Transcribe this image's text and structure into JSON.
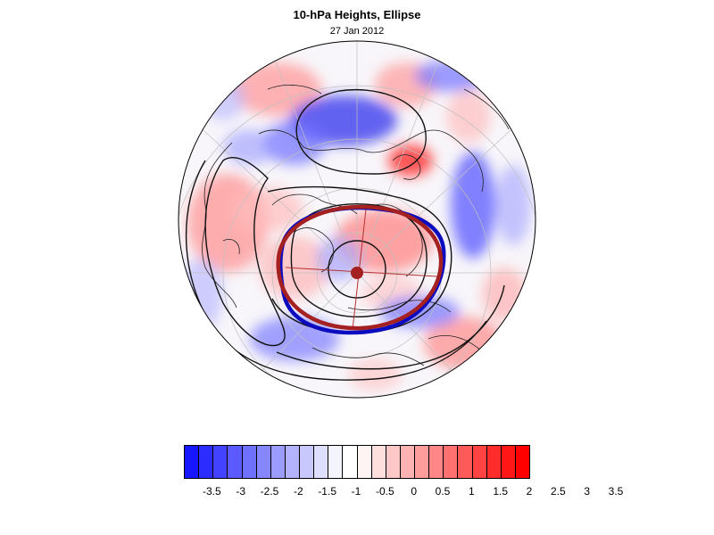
{
  "title": "10-hPa Heights, Ellipse",
  "subtitle": "27 Jan 2012",
  "colorbar": {
    "labels": [
      "-3.5",
      "-3",
      "-2.5",
      "-2",
      "-1.5",
      "-1",
      "-0.5",
      "0",
      "0.5",
      "1",
      "1.5",
      "2",
      "2.5",
      "3",
      "3.5"
    ],
    "colors": [
      "#1616ff",
      "#2c2cff",
      "#4343ff",
      "#5a5aff",
      "#7070ff",
      "#8686ff",
      "#9c9cff",
      "#b2b2ff",
      "#c8c8ff",
      "#dedeff",
      "#f4f4ff",
      "#ffffff",
      "#fff4f4",
      "#ffdede",
      "#ffc8c8",
      "#ffb2b2",
      "#ff9c9c",
      "#ff8686",
      "#ff7070",
      "#ff5a5a",
      "#ff4343",
      "#ff2c2c",
      "#ff1616",
      "#ff0000"
    ]
  },
  "map": {
    "projection": "polar-stereographic",
    "ellipse_colors": [
      "#0b0bbf",
      "#a52020"
    ],
    "center_marker_color": "#a52020"
  }
}
